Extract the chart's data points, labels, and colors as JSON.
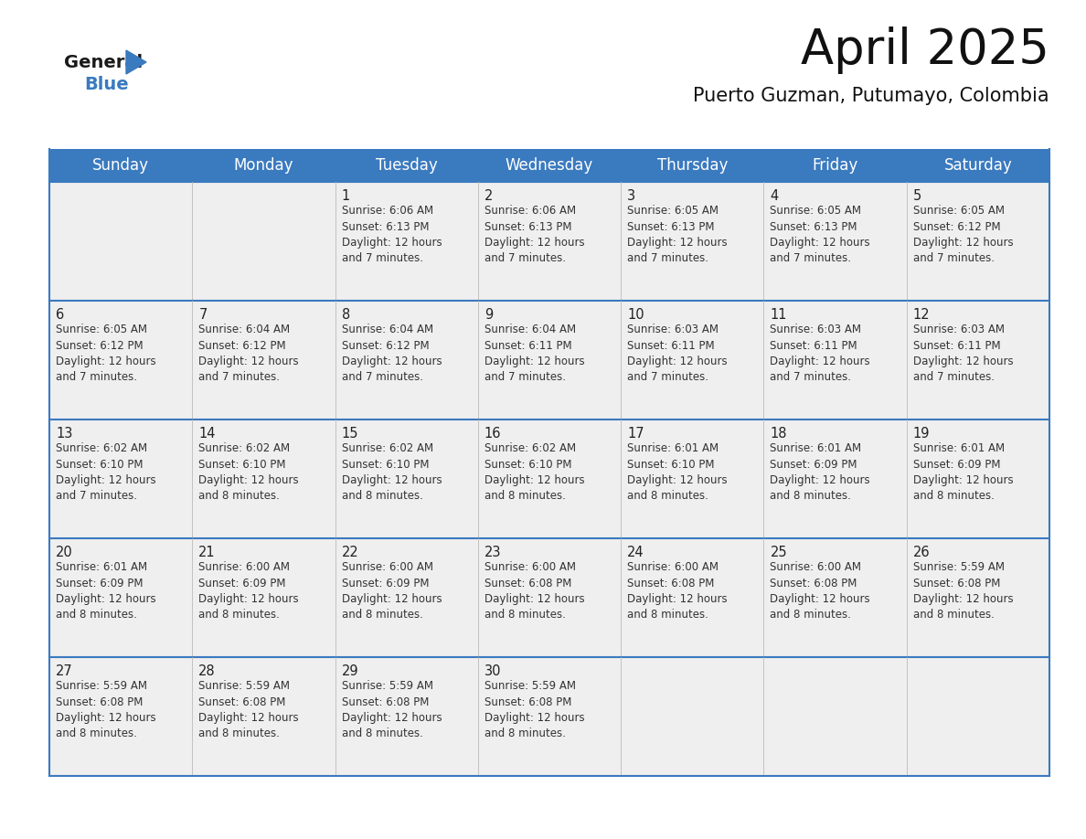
{
  "title": "April 2025",
  "subtitle": "Puerto Guzman, Putumayo, Colombia",
  "header_bg_color": "#3a7abf",
  "header_text_color": "#ffffff",
  "cell_bg_color_light": "#efefef",
  "border_color": "#3a7abf",
  "grid_color": "#bbbbbb",
  "day_headers": [
    "Sunday",
    "Monday",
    "Tuesday",
    "Wednesday",
    "Thursday",
    "Friday",
    "Saturday"
  ],
  "weeks": [
    [
      {
        "day": "",
        "info": ""
      },
      {
        "day": "",
        "info": ""
      },
      {
        "day": "1",
        "info": "Sunrise: 6:06 AM\nSunset: 6:13 PM\nDaylight: 12 hours\nand 7 minutes."
      },
      {
        "day": "2",
        "info": "Sunrise: 6:06 AM\nSunset: 6:13 PM\nDaylight: 12 hours\nand 7 minutes."
      },
      {
        "day": "3",
        "info": "Sunrise: 6:05 AM\nSunset: 6:13 PM\nDaylight: 12 hours\nand 7 minutes."
      },
      {
        "day": "4",
        "info": "Sunrise: 6:05 AM\nSunset: 6:13 PM\nDaylight: 12 hours\nand 7 minutes."
      },
      {
        "day": "5",
        "info": "Sunrise: 6:05 AM\nSunset: 6:12 PM\nDaylight: 12 hours\nand 7 minutes."
      }
    ],
    [
      {
        "day": "6",
        "info": "Sunrise: 6:05 AM\nSunset: 6:12 PM\nDaylight: 12 hours\nand 7 minutes."
      },
      {
        "day": "7",
        "info": "Sunrise: 6:04 AM\nSunset: 6:12 PM\nDaylight: 12 hours\nand 7 minutes."
      },
      {
        "day": "8",
        "info": "Sunrise: 6:04 AM\nSunset: 6:12 PM\nDaylight: 12 hours\nand 7 minutes."
      },
      {
        "day": "9",
        "info": "Sunrise: 6:04 AM\nSunset: 6:11 PM\nDaylight: 12 hours\nand 7 minutes."
      },
      {
        "day": "10",
        "info": "Sunrise: 6:03 AM\nSunset: 6:11 PM\nDaylight: 12 hours\nand 7 minutes."
      },
      {
        "day": "11",
        "info": "Sunrise: 6:03 AM\nSunset: 6:11 PM\nDaylight: 12 hours\nand 7 minutes."
      },
      {
        "day": "12",
        "info": "Sunrise: 6:03 AM\nSunset: 6:11 PM\nDaylight: 12 hours\nand 7 minutes."
      }
    ],
    [
      {
        "day": "13",
        "info": "Sunrise: 6:02 AM\nSunset: 6:10 PM\nDaylight: 12 hours\nand 7 minutes."
      },
      {
        "day": "14",
        "info": "Sunrise: 6:02 AM\nSunset: 6:10 PM\nDaylight: 12 hours\nand 8 minutes."
      },
      {
        "day": "15",
        "info": "Sunrise: 6:02 AM\nSunset: 6:10 PM\nDaylight: 12 hours\nand 8 minutes."
      },
      {
        "day": "16",
        "info": "Sunrise: 6:02 AM\nSunset: 6:10 PM\nDaylight: 12 hours\nand 8 minutes."
      },
      {
        "day": "17",
        "info": "Sunrise: 6:01 AM\nSunset: 6:10 PM\nDaylight: 12 hours\nand 8 minutes."
      },
      {
        "day": "18",
        "info": "Sunrise: 6:01 AM\nSunset: 6:09 PM\nDaylight: 12 hours\nand 8 minutes."
      },
      {
        "day": "19",
        "info": "Sunrise: 6:01 AM\nSunset: 6:09 PM\nDaylight: 12 hours\nand 8 minutes."
      }
    ],
    [
      {
        "day": "20",
        "info": "Sunrise: 6:01 AM\nSunset: 6:09 PM\nDaylight: 12 hours\nand 8 minutes."
      },
      {
        "day": "21",
        "info": "Sunrise: 6:00 AM\nSunset: 6:09 PM\nDaylight: 12 hours\nand 8 minutes."
      },
      {
        "day": "22",
        "info": "Sunrise: 6:00 AM\nSunset: 6:09 PM\nDaylight: 12 hours\nand 8 minutes."
      },
      {
        "day": "23",
        "info": "Sunrise: 6:00 AM\nSunset: 6:08 PM\nDaylight: 12 hours\nand 8 minutes."
      },
      {
        "day": "24",
        "info": "Sunrise: 6:00 AM\nSunset: 6:08 PM\nDaylight: 12 hours\nand 8 minutes."
      },
      {
        "day": "25",
        "info": "Sunrise: 6:00 AM\nSunset: 6:08 PM\nDaylight: 12 hours\nand 8 minutes."
      },
      {
        "day": "26",
        "info": "Sunrise: 5:59 AM\nSunset: 6:08 PM\nDaylight: 12 hours\nand 8 minutes."
      }
    ],
    [
      {
        "day": "27",
        "info": "Sunrise: 5:59 AM\nSunset: 6:08 PM\nDaylight: 12 hours\nand 8 minutes."
      },
      {
        "day": "28",
        "info": "Sunrise: 5:59 AM\nSunset: 6:08 PM\nDaylight: 12 hours\nand 8 minutes."
      },
      {
        "day": "29",
        "info": "Sunrise: 5:59 AM\nSunset: 6:08 PM\nDaylight: 12 hours\nand 8 minutes."
      },
      {
        "day": "30",
        "info": "Sunrise: 5:59 AM\nSunset: 6:08 PM\nDaylight: 12 hours\nand 8 minutes."
      },
      {
        "day": "",
        "info": ""
      },
      {
        "day": "",
        "info": ""
      },
      {
        "day": "",
        "info": ""
      }
    ]
  ],
  "logo_triangle_color": "#3a7abf",
  "title_fontsize": 38,
  "subtitle_fontsize": 15,
  "header_fontsize": 12,
  "day_num_fontsize": 10.5,
  "info_fontsize": 8.5
}
